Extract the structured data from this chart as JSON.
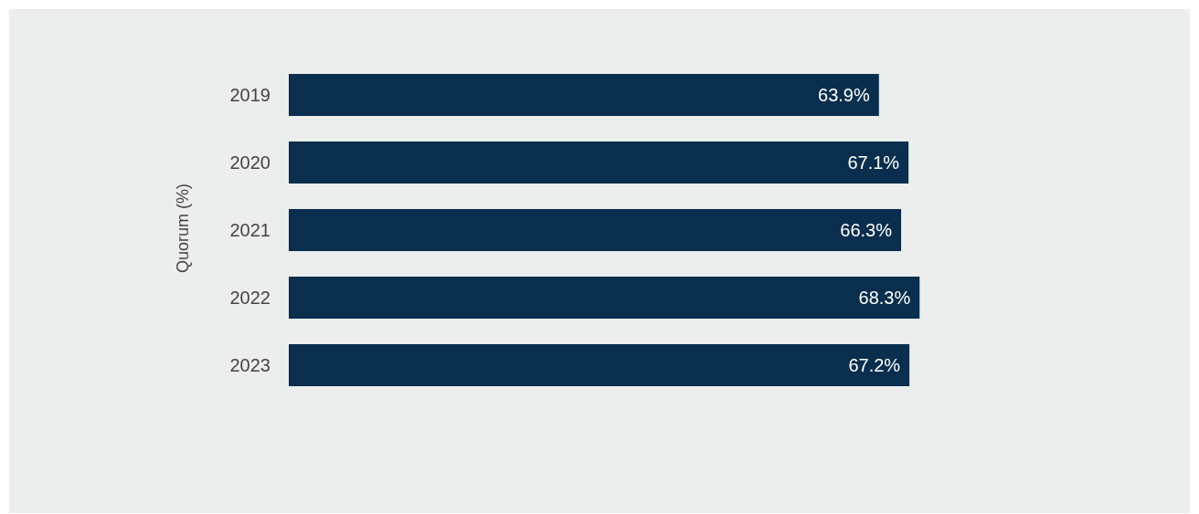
{
  "chart_data": {
    "type": "bar",
    "orientation": "horizontal",
    "ylabel": "Quorum (%)",
    "categories": [
      "2019",
      "2020",
      "2021",
      "2022",
      "2023"
    ],
    "series": [
      {
        "color": "#0a2e4d",
        "values": [
          63.9,
          67.1,
          66.3,
          68.3,
          67.2
        ],
        "value_labels": [
          "63.9%",
          "67.1%",
          "66.3%",
          "68.3%",
          "67.2%"
        ]
      }
    ],
    "tick_labels": "y",
    "grid": false,
    "legend": false
  }
}
